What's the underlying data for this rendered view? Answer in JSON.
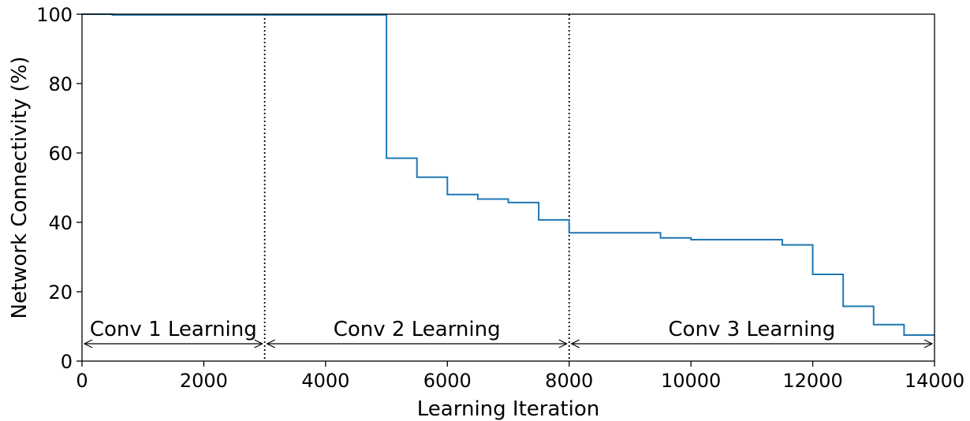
{
  "chart_data": {
    "type": "line",
    "title": "",
    "xlabel": "Learning Iteration",
    "ylabel": "Network Connectivity (%)",
    "xlim": [
      0,
      14000
    ],
    "ylim": [
      0,
      100
    ],
    "grid": false,
    "legend": "none",
    "x_ticks": [
      0,
      2000,
      4000,
      6000,
      8000,
      10000,
      12000,
      14000
    ],
    "y_ticks": [
      0,
      20,
      40,
      60,
      80,
      100
    ],
    "x_tick_labels": [
      "0",
      "2000",
      "4000",
      "6000",
      "8000",
      "10000",
      "12000",
      "14000"
    ],
    "y_tick_labels": [
      "0",
      "20",
      "40",
      "60",
      "80",
      "100"
    ],
    "line_color": "#1f77b4",
    "series": [
      {
        "step": "post",
        "x": [
          0,
          500,
          5000,
          5500,
          6000,
          6500,
          7000,
          7500,
          8000,
          9500,
          10000,
          11500,
          12000,
          12500,
          13000,
          13500,
          14000
        ],
        "values": [
          100,
          99.8,
          58.5,
          53,
          48,
          46.7,
          45.7,
          40.7,
          37,
          35.5,
          35,
          33.5,
          25,
          15.8,
          10.5,
          7.5,
          7.5
        ]
      }
    ],
    "phase_boundaries": [
      3000,
      8000
    ],
    "phases": [
      {
        "label": "Conv 1 Learning",
        "start": 0,
        "end": 3000
      },
      {
        "label": "Conv 2 Learning",
        "start": 3000,
        "end": 8000
      },
      {
        "label": "Conv 3 Learning",
        "start": 8000,
        "end": 14000
      }
    ]
  }
}
